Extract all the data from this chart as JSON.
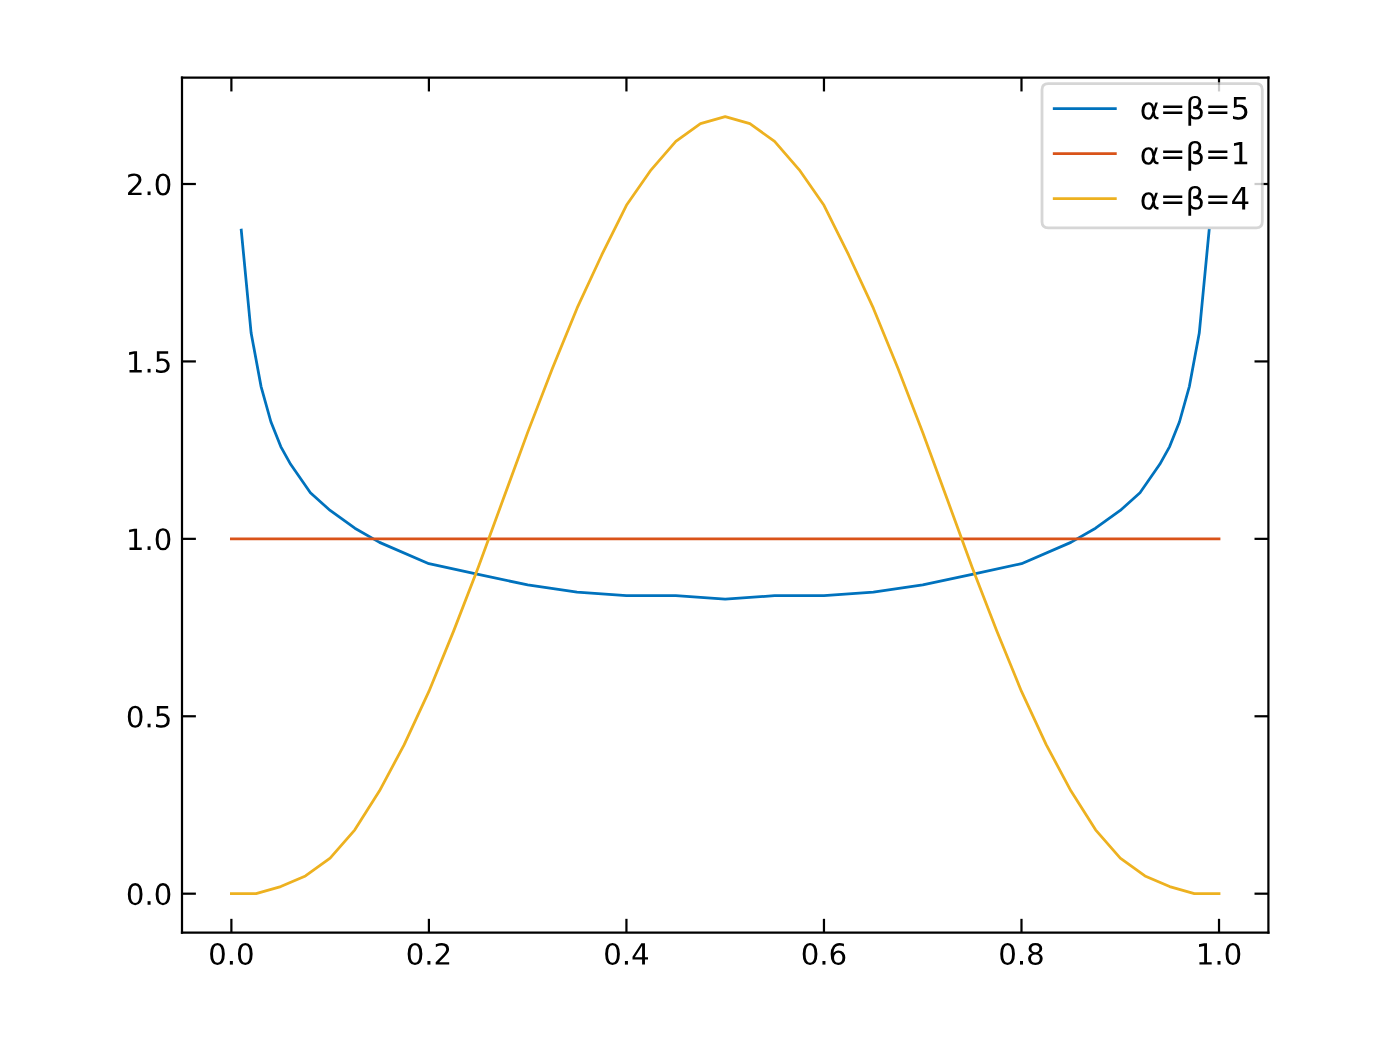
{
  "chart_data": {
    "type": "line",
    "xlim": [
      -0.05,
      1.05
    ],
    "ylim": [
      -0.11,
      2.3
    ],
    "xticks": [
      {
        "value": 0,
        "label": "0.0"
      },
      0.2,
      0.4,
      0.6,
      0.8,
      {
        "value": 1,
        "label": "1.0"
      }
    ],
    "yticks": [
      {
        "value": 0,
        "label": "0.0"
      },
      0.5,
      {
        "value": 1,
        "label": "1.0"
      },
      1.5,
      {
        "value": 2,
        "label": "2.0"
      }
    ],
    "legend": "top right",
    "series": [
      {
        "name": "α=β=5",
        "color": "#0072bd",
        "x": [
          0.01,
          0.02,
          0.03,
          0.04,
          0.05,
          0.06,
          0.08,
          0.1,
          0.125,
          0.15,
          0.2,
          0.25,
          0.3,
          0.35,
          0.4,
          0.45,
          0.5,
          0.55,
          0.6,
          0.65,
          0.7,
          0.75,
          0.8,
          0.85,
          0.875,
          0.9,
          0.92,
          0.94,
          0.95,
          0.96,
          0.97,
          0.98,
          0.99
        ],
        "values": [
          1.87,
          1.58,
          1.43,
          1.33,
          1.26,
          1.21,
          1.13,
          1.08,
          1.03,
          0.99,
          0.93,
          0.9,
          0.87,
          0.85,
          0.84,
          0.84,
          0.83,
          0.84,
          0.84,
          0.85,
          0.87,
          0.9,
          0.93,
          0.99,
          1.03,
          1.08,
          1.13,
          1.21,
          1.26,
          1.33,
          1.43,
          1.58,
          1.87
        ]
      },
      {
        "name": "α=β=1",
        "color": "#d95319",
        "x": [
          0,
          1
        ],
        "values": [
          1,
          1
        ]
      },
      {
        "name": "α=β=4",
        "color": "#edb120",
        "x": [
          0,
          0.025,
          0.05,
          0.075,
          0.1,
          0.125,
          0.15,
          0.175,
          0.2,
          0.225,
          0.25,
          0.275,
          0.3,
          0.325,
          0.35,
          0.375,
          0.4,
          0.425,
          0.45,
          0.475,
          0.5,
          0.525,
          0.55,
          0.575,
          0.6,
          0.625,
          0.65,
          0.675,
          0.7,
          0.725,
          0.75,
          0.775,
          0.8,
          0.825,
          0.85,
          0.875,
          0.9,
          0.925,
          0.95,
          0.975,
          1
        ],
        "values": [
          0,
          0.0,
          0.02,
          0.05,
          0.1,
          0.18,
          0.29,
          0.42,
          0.57,
          0.74,
          0.92,
          1.11,
          1.3,
          1.48,
          1.65,
          1.8,
          1.94,
          2.04,
          2.12,
          2.17,
          2.19,
          2.17,
          2.12,
          2.04,
          1.94,
          1.8,
          1.65,
          1.48,
          1.3,
          1.11,
          0.92,
          0.74,
          0.57,
          0.42,
          0.29,
          0.18,
          0.1,
          0.05,
          0.02,
          0.0,
          0
        ]
      }
    ]
  }
}
